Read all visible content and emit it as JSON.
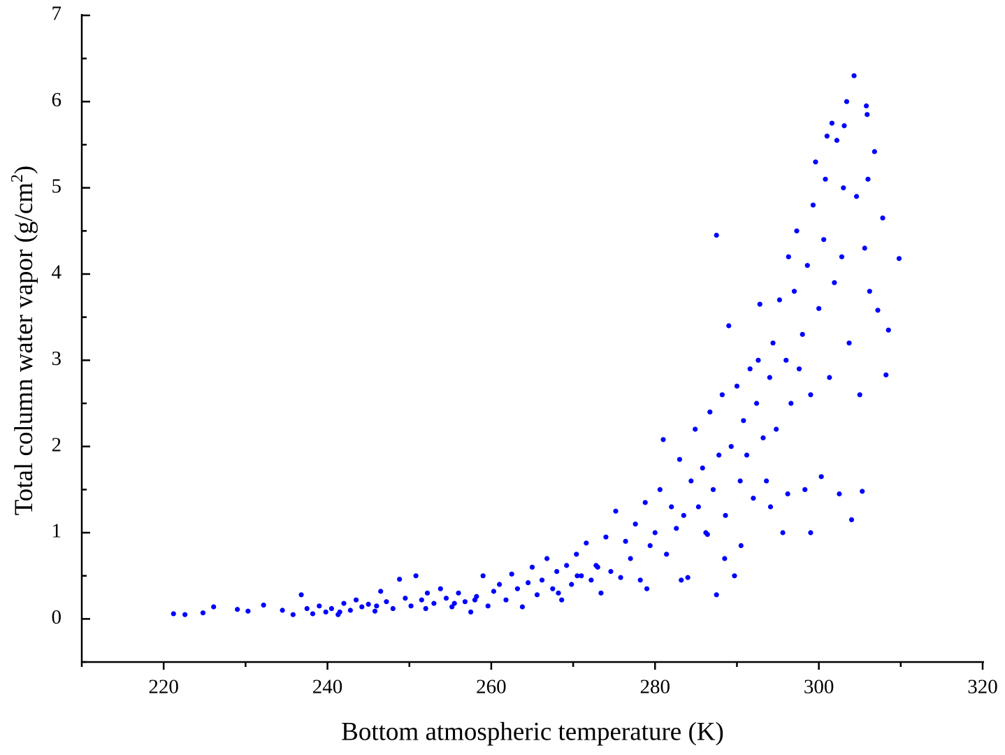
{
  "chart_data": {
    "type": "scatter",
    "xlabel": "Bottom atmospheric temperature (K)",
    "ylabel": [
      "Total column water vapor (g/cm",
      "2",
      ")"
    ],
    "color": "#0000ff",
    "xlim": [
      210,
      320
    ],
    "xticks": [
      220,
      240,
      260,
      280,
      300,
      320
    ],
    "xminorticks": [
      210,
      230,
      250,
      270,
      290,
      310
    ],
    "ylim": [
      -0.5,
      7
    ],
    "yticks": [
      0,
      1,
      2,
      3,
      4,
      5,
      6,
      7
    ],
    "yminorticks": [
      -0.5,
      0.5,
      1.5,
      2.5,
      3.5,
      4.5,
      5.5,
      6.5
    ],
    "x": [
      221.2,
      222.6,
      224.8,
      226.1,
      229.0,
      230.3,
      232.2,
      234.5,
      235.8,
      236.8,
      237.5,
      238.2,
      239.0,
      239.8,
      240.5,
      241.3,
      242.0,
      242.8,
      243.5,
      244.2,
      245.0,
      245.8,
      246.5,
      247.2,
      248.0,
      248.8,
      249.5,
      250.2,
      250.8,
      251.5,
      252.2,
      253.0,
      253.8,
      254.5,
      255.2,
      256.0,
      256.8,
      257.5,
      258.2,
      259.0,
      259.6,
      260.3,
      261.0,
      261.8,
      262.5,
      263.2,
      263.8,
      264.5,
      265.0,
      265.6,
      266.2,
      266.8,
      267.5,
      268.0,
      268.6,
      269.2,
      269.8,
      270.4,
      271.0,
      271.6,
      272.2,
      272.8,
      273.4,
      274.0,
      274.6,
      275.2,
      275.8,
      276.4,
      277.0,
      277.6,
      278.2,
      278.8,
      279.4,
      280.0,
      280.6,
      281.0,
      281.4,
      282.0,
      282.6,
      283.0,
      283.5,
      284.0,
      284.4,
      284.9,
      285.3,
      285.8,
      286.2,
      286.7,
      287.1,
      287.5,
      287.5,
      287.8,
      288.2,
      288.6,
      289.0,
      289.3,
      289.7,
      290.0,
      290.4,
      290.8,
      291.2,
      291.6,
      292.0,
      292.4,
      292.8,
      293.2,
      293.6,
      294.0,
      294.4,
      294.8,
      295.2,
      295.6,
      296.0,
      296.3,
      296.6,
      297.0,
      297.3,
      297.6,
      298.0,
      298.3,
      298.6,
      299.0,
      299.3,
      299.6,
      300.0,
      300.3,
      300.6,
      301.0,
      301.3,
      301.6,
      301.9,
      302.2,
      302.5,
      302.8,
      303.1,
      303.4,
      303.7,
      304.0,
      304.3,
      304.6,
      305.0,
      305.3,
      305.6,
      305.8,
      306.0,
      306.2,
      306.8,
      307.2,
      307.8,
      308.2,
      308.5,
      309.8,
      305.9,
      303.0,
      300.8,
      299.0,
      296.2,
      294.1,
      292.6,
      290.5,
      288.5,
      286.4,
      283.2,
      279.0,
      273.0,
      270.5,
      268.2,
      258.0,
      255.5,
      252.0,
      246.0,
      241.5
    ],
    "y": [
      0.06,
      0.05,
      0.07,
      0.14,
      0.11,
      0.09,
      0.16,
      0.1,
      0.05,
      0.28,
      0.12,
      0.06,
      0.15,
      0.08,
      0.12,
      0.05,
      0.18,
      0.1,
      0.22,
      0.14,
      0.17,
      0.09,
      0.32,
      0.2,
      0.12,
      0.46,
      0.24,
      0.15,
      0.5,
      0.22,
      0.3,
      0.18,
      0.35,
      0.24,
      0.14,
      0.3,
      0.2,
      0.08,
      0.26,
      0.5,
      0.15,
      0.32,
      0.4,
      0.22,
      0.52,
      0.35,
      0.14,
      0.42,
      0.6,
      0.28,
      0.45,
      0.7,
      0.35,
      0.55,
      0.22,
      0.62,
      0.4,
      0.75,
      0.5,
      0.88,
      0.45,
      0.62,
      0.3,
      0.95,
      0.55,
      1.25,
      0.48,
      0.9,
      0.7,
      1.1,
      0.45,
      1.35,
      0.85,
      1.0,
      1.5,
      2.08,
      0.75,
      1.3,
      1.05,
      1.85,
      1.2,
      0.48,
      1.6,
      2.2,
      1.3,
      1.75,
      1.0,
      2.4,
      1.5,
      4.45,
      0.28,
      1.9,
      2.6,
      1.2,
      3.4,
      2.0,
      0.5,
      2.7,
      1.6,
      2.3,
      1.9,
      2.9,
      1.4,
      2.5,
      3.65,
      2.1,
      1.6,
      2.8,
      3.2,
      2.2,
      3.7,
      1.0,
      3.0,
      4.2,
      2.5,
      3.8,
      4.5,
      2.9,
      3.3,
      1.5,
      4.1,
      2.6,
      4.8,
      5.3,
      3.6,
      1.65,
      4.4,
      5.6,
      2.8,
      5.75,
      3.9,
      5.55,
      1.45,
      4.2,
      5.72,
      6.0,
      3.2,
      1.15,
      6.3,
      4.9,
      2.6,
      1.48,
      4.3,
      5.95,
      5.1,
      3.8,
      5.42,
      3.58,
      4.65,
      2.83,
      3.35,
      4.18,
      5.85,
      5.0,
      5.1,
      1.0,
      1.45,
      1.3,
      3.0,
      0.85,
      0.7,
      0.98,
      0.45,
      0.35,
      0.6,
      0.5,
      0.3,
      0.22,
      0.18,
      0.12,
      0.15,
      0.08
    ]
  }
}
